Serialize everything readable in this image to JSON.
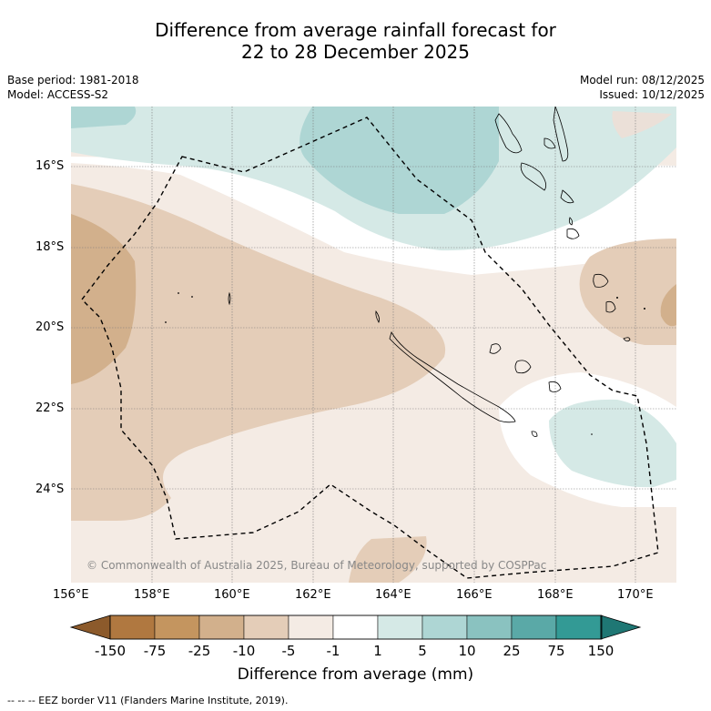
{
  "title": {
    "line1": "Difference from average rainfall forecast for",
    "line2": "22 to 28 December 2025"
  },
  "meta_left": {
    "base_period": "Base period: 1981-2018",
    "model": "Model: ACCESS-S2"
  },
  "meta_right": {
    "model_run": "Model run: 08/12/2025",
    "issued": "Issued: 10/12/2025"
  },
  "credit": "© Commonwealth of Australia 2025, Bureau of Meteorology, supported by COSPPac",
  "axes": {
    "lat_labels": [
      "16°S",
      "18°S",
      "20°S",
      "22°S",
      "24°S"
    ],
    "lon_labels": [
      "156°E",
      "158°E",
      "160°E",
      "162°E",
      "164°E",
      "166°E",
      "168°E",
      "170°E"
    ]
  },
  "colorbar": {
    "labels": [
      "-150",
      "-75",
      "-25",
      "-10",
      "-5",
      "-1",
      "1",
      "5",
      "10",
      "25",
      "75",
      "150"
    ],
    "colors": [
      "#8c5a2b",
      "#b07840",
      "#c4955f",
      "#d2b08c",
      "#e4cdb8",
      "#f4ebe4",
      "#ffffff",
      "#d5e9e6",
      "#aed6d4",
      "#8ac2c0",
      "#5aa9a7",
      "#339a95",
      "#1f7774"
    ],
    "title": "Difference from average (mm)"
  },
  "legend_text": "-- -- -- EEZ border V11 (Flanders Marine Institute, 2019)."
}
